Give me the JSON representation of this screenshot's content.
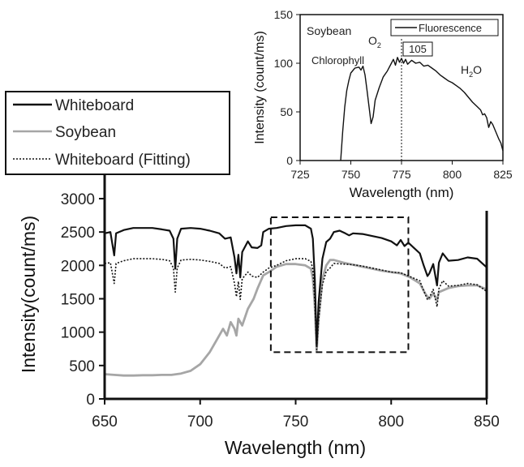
{
  "chart_data": [
    {
      "type": "line",
      "xlabel": "Wavelength (nm)",
      "ylabel": "Intensity(count/ms)",
      "xlim": [
        650,
        850
      ],
      "ylim": [
        0,
        3000
      ],
      "xticks": [
        650,
        700,
        750,
        800,
        850
      ],
      "yticks": [
        0,
        500,
        1000,
        1500,
        2000,
        2500,
        3000
      ],
      "legend_position": "top-left",
      "series": [
        {
          "name": "Whiteboard",
          "style": "solid",
          "color": "#111111",
          "points": [
            [
              650,
              2480
            ],
            [
              653,
              2500
            ],
            [
              655,
              2150
            ],
            [
              656,
              2480
            ],
            [
              660,
              2530
            ],
            [
              665,
              2560
            ],
            [
              670,
              2560
            ],
            [
              675,
              2560
            ],
            [
              680,
              2540
            ],
            [
              684,
              2520
            ],
            [
              686,
              2400
            ],
            [
              687,
              1950
            ],
            [
              688,
              2400
            ],
            [
              690,
              2550
            ],
            [
              695,
              2560
            ],
            [
              700,
              2550
            ],
            [
              705,
              2520
            ],
            [
              710,
              2480
            ],
            [
              713,
              2400
            ],
            [
              716,
              2420
            ],
            [
              718,
              2120
            ],
            [
              719,
              1880
            ],
            [
              720,
              2160
            ],
            [
              721,
              1820
            ],
            [
              722,
              2200
            ],
            [
              725,
              2360
            ],
            [
              727,
              2270
            ],
            [
              730,
              2260
            ],
            [
              732,
              2300
            ],
            [
              733,
              2500
            ],
            [
              736,
              2550
            ],
            [
              740,
              2560
            ],
            [
              745,
              2590
            ],
            [
              750,
              2600
            ],
            [
              755,
              2600
            ],
            [
              758,
              2550
            ],
            [
              759,
              2400
            ],
            [
              760,
              1800
            ],
            [
              761,
              800
            ],
            [
              762,
              1450
            ],
            [
              764,
              2100
            ],
            [
              766,
              2350
            ],
            [
              768,
              2400
            ],
            [
              770,
              2500
            ],
            [
              773,
              2520
            ],
            [
              776,
              2480
            ],
            [
              778,
              2450
            ],
            [
              780,
              2480
            ],
            [
              785,
              2470
            ],
            [
              790,
              2440
            ],
            [
              795,
              2410
            ],
            [
              800,
              2360
            ],
            [
              803,
              2300
            ],
            [
              805,
              2380
            ],
            [
              807,
              2290
            ],
            [
              809,
              2340
            ],
            [
              812,
              2260
            ],
            [
              815,
              2180
            ],
            [
              817,
              2000
            ],
            [
              819,
              1840
            ],
            [
              820,
              1880
            ],
            [
              822,
              2020
            ],
            [
              824,
              1700
            ],
            [
              825,
              2040
            ],
            [
              827,
              2180
            ],
            [
              830,
              2070
            ],
            [
              835,
              2080
            ],
            [
              840,
              2120
            ],
            [
              845,
              2100
            ],
            [
              850,
              1970
            ]
          ]
        },
        {
          "name": "Soybean",
          "style": "solid",
          "color": "#a6a6a6",
          "points": [
            [
              650,
              370
            ],
            [
              655,
              360
            ],
            [
              660,
              350
            ],
            [
              665,
              350
            ],
            [
              670,
              355
            ],
            [
              675,
              355
            ],
            [
              680,
              360
            ],
            [
              685,
              360
            ],
            [
              690,
              380
            ],
            [
              695,
              420
            ],
            [
              700,
              520
            ],
            [
              705,
              700
            ],
            [
              710,
              950
            ],
            [
              712,
              1050
            ],
            [
              714,
              950
            ],
            [
              716,
              1150
            ],
            [
              718,
              1050
            ],
            [
              719,
              950
            ],
            [
              720,
              1200
            ],
            [
              722,
              1100
            ],
            [
              725,
              1350
            ],
            [
              728,
              1500
            ],
            [
              730,
              1650
            ],
            [
              733,
              1850
            ],
            [
              736,
              1900
            ],
            [
              740,
              1980
            ],
            [
              745,
              2020
            ],
            [
              750,
              2020
            ],
            [
              755,
              2000
            ],
            [
              758,
              1950
            ],
            [
              759,
              1800
            ],
            [
              760,
              1400
            ],
            [
              761,
              720
            ],
            [
              762,
              1200
            ],
            [
              764,
              1800
            ],
            [
              766,
              2000
            ],
            [
              768,
              2080
            ],
            [
              770,
              2080
            ],
            [
              775,
              2040
            ],
            [
              780,
              2010
            ],
            [
              785,
              1980
            ],
            [
              790,
              1950
            ],
            [
              795,
              1920
            ],
            [
              800,
              1900
            ],
            [
              805,
              1880
            ],
            [
              810,
              1820
            ],
            [
              815,
              1730
            ],
            [
              818,
              1570
            ],
            [
              820,
              1500
            ],
            [
              822,
              1580
            ],
            [
              824,
              1480
            ],
            [
              825,
              1600
            ],
            [
              830,
              1660
            ],
            [
              835,
              1690
            ],
            [
              840,
              1700
            ],
            [
              845,
              1700
            ],
            [
              850,
              1640
            ]
          ]
        },
        {
          "name": "Whiteboard (Fitting)",
          "style": "dotted",
          "color": "#111111",
          "points": [
            [
              650,
              2030
            ],
            [
              653,
              2040
            ],
            [
              655,
              1730
            ],
            [
              656,
              2030
            ],
            [
              660,
              2070
            ],
            [
              665,
              2100
            ],
            [
              670,
              2100
            ],
            [
              675,
              2100
            ],
            [
              680,
              2090
            ],
            [
              684,
              2070
            ],
            [
              686,
              1960
            ],
            [
              687,
              1600
            ],
            [
              688,
              1960
            ],
            [
              690,
              2080
            ],
            [
              695,
              2090
            ],
            [
              700,
              2080
            ],
            [
              705,
              2060
            ],
            [
              710,
              2030
            ],
            [
              713,
              1960
            ],
            [
              716,
              1980
            ],
            [
              718,
              1730
            ],
            [
              719,
              1530
            ],
            [
              720,
              1760
            ],
            [
              721,
              1490
            ],
            [
              722,
              1800
            ],
            [
              725,
              1900
            ],
            [
              727,
              1840
            ],
            [
              730,
              1820
            ],
            [
              733,
              1900
            ],
            [
              736,
              1960
            ],
            [
              740,
              2000
            ],
            [
              745,
              2070
            ],
            [
              750,
              2100
            ],
            [
              755,
              2100
            ],
            [
              758,
              2060
            ],
            [
              759,
              1940
            ],
            [
              760,
              1460
            ],
            [
              761,
              740
            ],
            [
              762,
              1180
            ],
            [
              764,
              1710
            ],
            [
              766,
              1910
            ],
            [
              768,
              1960
            ],
            [
              770,
              2030
            ],
            [
              775,
              2020
            ],
            [
              780,
              2010
            ],
            [
              785,
              1990
            ],
            [
              790,
              1960
            ],
            [
              795,
              1930
            ],
            [
              800,
              1900
            ],
            [
              805,
              1890
            ],
            [
              810,
              1830
            ],
            [
              815,
              1770
            ],
            [
              817,
              1620
            ],
            [
              819,
              1490
            ],
            [
              820,
              1520
            ],
            [
              822,
              1640
            ],
            [
              824,
              1380
            ],
            [
              825,
              1650
            ],
            [
              827,
              1770
            ],
            [
              830,
              1690
            ],
            [
              835,
              1700
            ],
            [
              840,
              1730
            ],
            [
              845,
              1710
            ],
            [
              850,
              1610
            ]
          ]
        }
      ],
      "annotation": "dashed box 737–809 nm, 700–2720 count/ms"
    },
    {
      "type": "line",
      "xlabel": "Wavelength (nm)",
      "ylabel": "Intensity (count/ms)",
      "xlim": [
        725,
        825
      ],
      "ylim": [
        0,
        150
      ],
      "xticks": [
        725,
        750,
        775,
        800,
        825
      ],
      "yticks": [
        0,
        50,
        100,
        150
      ],
      "legend_position": "top-right",
      "series": [
        {
          "name": "Fluorescence",
          "style": "solid",
          "color": "#111111",
          "points": [
            [
              745,
              0
            ],
            [
              746,
              30
            ],
            [
              747,
              55
            ],
            [
              748,
              72
            ],
            [
              749,
              82
            ],
            [
              750,
              90
            ],
            [
              752,
              95
            ],
            [
              754,
              96
            ],
            [
              755,
              93
            ],
            [
              756,
              97
            ],
            [
              757,
              88
            ],
            [
              758,
              72
            ],
            [
              759,
              55
            ],
            [
              760,
              38
            ],
            [
              761,
              45
            ],
            [
              762,
              62
            ],
            [
              764,
              75
            ],
            [
              766,
              86
            ],
            [
              768,
              92
            ],
            [
              770,
              100
            ],
            [
              771,
              104
            ],
            [
              772,
              98
            ],
            [
              773,
              106
            ],
            [
              774,
              101
            ],
            [
              775,
              105
            ],
            [
              776,
              100
            ],
            [
              777,
              104
            ],
            [
              778,
              99
            ],
            [
              780,
              103
            ],
            [
              782,
              100
            ],
            [
              784,
              101
            ],
            [
              786,
              97
            ],
            [
              788,
              98
            ],
            [
              790,
              95
            ],
            [
              792,
              92
            ],
            [
              794,
              88
            ],
            [
              796,
              85
            ],
            [
              798,
              82
            ],
            [
              800,
              80
            ],
            [
              802,
              77
            ],
            [
              804,
              74
            ],
            [
              806,
              70
            ],
            [
              808,
              65
            ],
            [
              810,
              60
            ],
            [
              812,
              56
            ],
            [
              814,
              52
            ],
            [
              815,
              47
            ],
            [
              816,
              48
            ],
            [
              817,
              44
            ],
            [
              818,
              34
            ],
            [
              819,
              40
            ],
            [
              820,
              37
            ],
            [
              821,
              32
            ],
            [
              822,
              27
            ],
            [
              823,
              22
            ],
            [
              824,
              18
            ],
            [
              825,
              10
            ]
          ]
        }
      ],
      "annotations": {
        "sample": "Soybean",
        "o2": "O",
        "o2_sub": "2",
        "chlorophyll": "Chlorophyll",
        "h2o_main": "H",
        "h2o_sub": "2",
        "h2o_end": "O",
        "peak_label": "105",
        "peak_x": 775
      }
    }
  ]
}
